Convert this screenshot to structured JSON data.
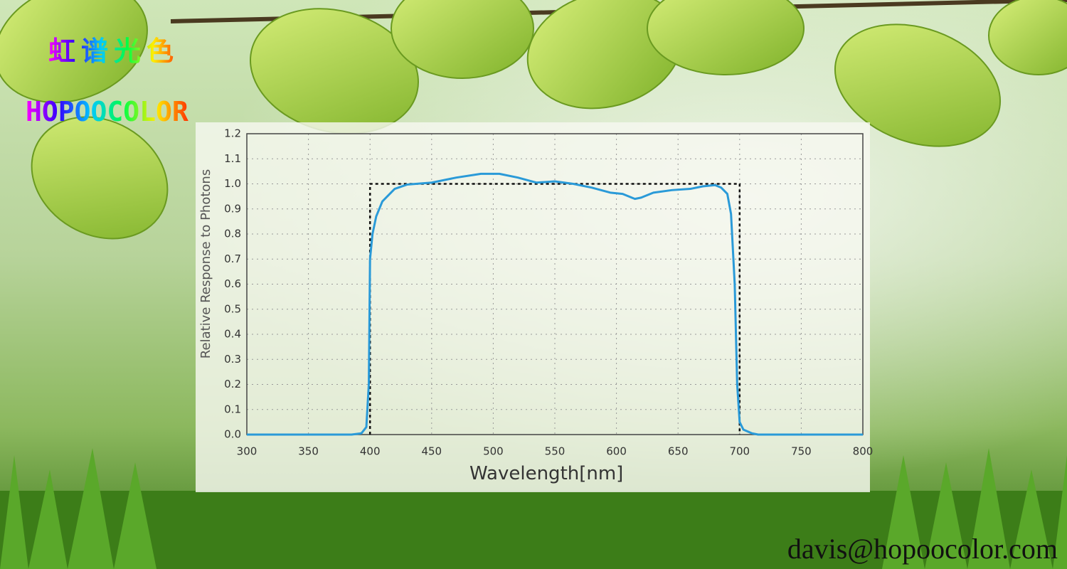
{
  "brand": {
    "name_cn": "虹谱光色",
    "name_en": "HOPOOCOLOR"
  },
  "contact": {
    "email": "davis@hopoocolor.com"
  },
  "chart_data": {
    "type": "line",
    "xlabel": "Wavelength[nm]",
    "ylabel": "Relative Response to Photons",
    "xlim": [
      300,
      800
    ],
    "xticks": [
      300,
      350,
      400,
      450,
      500,
      550,
      600,
      650,
      700,
      750,
      800
    ],
    "ylim": [
      0,
      1.2
    ],
    "yticks": [
      {
        "value": 0,
        "label": "0.0"
      },
      0.1,
      0.2,
      0.3,
      0.4,
      0.5,
      0.6,
      0.7,
      0.8,
      0.9,
      {
        "value": 1,
        "label": "1.0"
      },
      1.1,
      1.2
    ],
    "grid": true,
    "series": [
      {
        "color": "#2a9ad8",
        "line_style": "solid",
        "x": [
          300,
          385,
          393,
          397,
          399,
          400,
          402,
          405,
          410,
          420,
          430,
          450,
          470,
          490,
          505,
          520,
          535,
          550,
          565,
          580,
          595,
          605,
          615,
          620,
          630,
          645,
          660,
          670,
          680,
          685,
          690,
          693,
          696,
          698,
          700,
          703,
          710,
          715,
          800
        ],
        "values": [
          0,
          0,
          0.005,
          0.03,
          0.2,
          0.7,
          0.8,
          0.87,
          0.93,
          0.98,
          0.997,
          1.005,
          1.025,
          1.04,
          1.04,
          1.025,
          1.005,
          1.01,
          1.0,
          0.985,
          0.965,
          0.96,
          0.94,
          0.945,
          0.965,
          0.975,
          0.98,
          0.99,
          0.995,
          0.985,
          0.96,
          0.88,
          0.6,
          0.2,
          0.05,
          0.02,
          0.005,
          0,
          0
        ]
      },
      {
        "color": "#111111",
        "line_style": "dashed",
        "x": [
          400,
          400,
          700,
          700
        ],
        "values": [
          0,
          1,
          1,
          0
        ]
      }
    ]
  }
}
